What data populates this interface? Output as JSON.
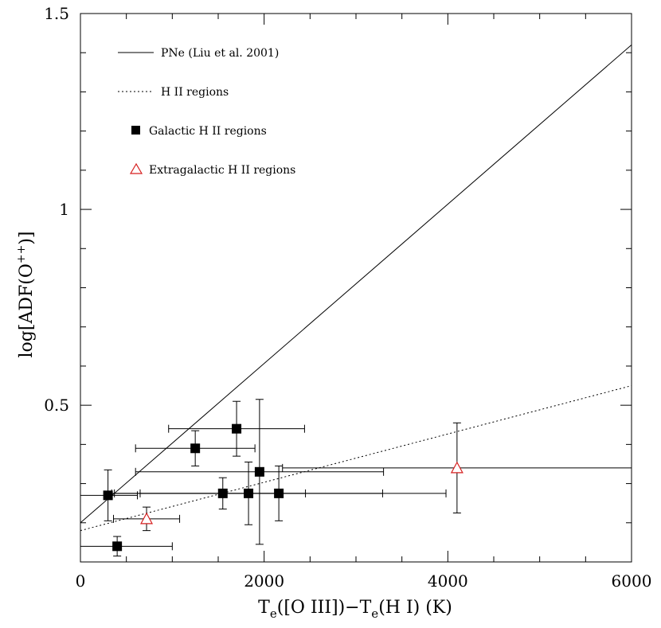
{
  "chart_data": {
    "type": "scatter",
    "title": "",
    "xlabel": {
      "main": "T",
      "sub1": "e",
      "mid": "([O III])−T",
      "sub2": "e",
      "end": "(H I)  (K)"
    },
    "ylabel": {
      "main": "log[ADF(O",
      "sup": "++",
      "end": ")]"
    },
    "xlim": [
      0,
      6000
    ],
    "ylim": [
      0.1,
      1.5
    ],
    "xticks": [
      {
        "value": 0,
        "label": "0"
      },
      {
        "value": 2000,
        "label": "2000"
      },
      {
        "value": 4000,
        "label": "4000"
      },
      {
        "value": 6000,
        "label": "6000"
      }
    ],
    "yticks": [
      {
        "value": 0.5,
        "label": "0.5"
      },
      {
        "value": 1.0,
        "label": "1"
      },
      {
        "value": 1.5,
        "label": "1.5"
      }
    ],
    "legend": {
      "placement": "top-left",
      "entries": [
        {
          "label": "PNe (Liu et al. 2001)",
          "style": "solid-line"
        },
        {
          "label": "H II regions",
          "style": "dotted-line"
        },
        {
          "label": "Galactic H II regions",
          "style": "filled-square"
        },
        {
          "label": "Extragalactic H II regions",
          "style": "open-triangle"
        }
      ]
    },
    "lines": [
      {
        "name": "PNe (Liu et al. 2001)",
        "style": "solid",
        "x": [
          0,
          6000
        ],
        "y": [
          0.2,
          1.42
        ]
      },
      {
        "name": "H II regions",
        "style": "dotted",
        "x": [
          0,
          6000
        ],
        "y": [
          0.18,
          0.55
        ]
      }
    ],
    "series": [
      {
        "name": "Galactic H II regions",
        "marker": "filled-square",
        "color": "#000000",
        "points": [
          {
            "x": 300,
            "y": 0.27,
            "xerr": 320,
            "yerr": 0.065
          },
          {
            "x": 400,
            "y": 0.14,
            "xerr": 600,
            "yerr": 0.025
          },
          {
            "x": 1250,
            "y": 0.39,
            "xerr": 650,
            "yerr": 0.045
          },
          {
            "x": 1700,
            "y": 0.44,
            "xerr": 740,
            "yerr": 0.07
          },
          {
            "x": 1550,
            "y": 0.275,
            "xerr": 900,
            "yerr": 0.04
          },
          {
            "x": 1830,
            "y": 0.275,
            "xerr": 1460,
            "yerr": 0.08
          },
          {
            "x": 1950,
            "y": 0.33,
            "xerr": 1350,
            "yerr": 0.185
          },
          {
            "x": 2160,
            "y": 0.275,
            "xerr": 1820,
            "yerr": 0.07
          }
        ]
      },
      {
        "name": "Extragalactic H II regions",
        "marker": "open-triangle",
        "color": "#d61f1f",
        "points": [
          {
            "x": 720,
            "y": 0.21,
            "xerr": 360,
            "yerr": 0.03
          },
          {
            "x": 4100,
            "y": 0.34,
            "xerr": 1900,
            "yerr": 0.115
          }
        ]
      }
    ]
  }
}
